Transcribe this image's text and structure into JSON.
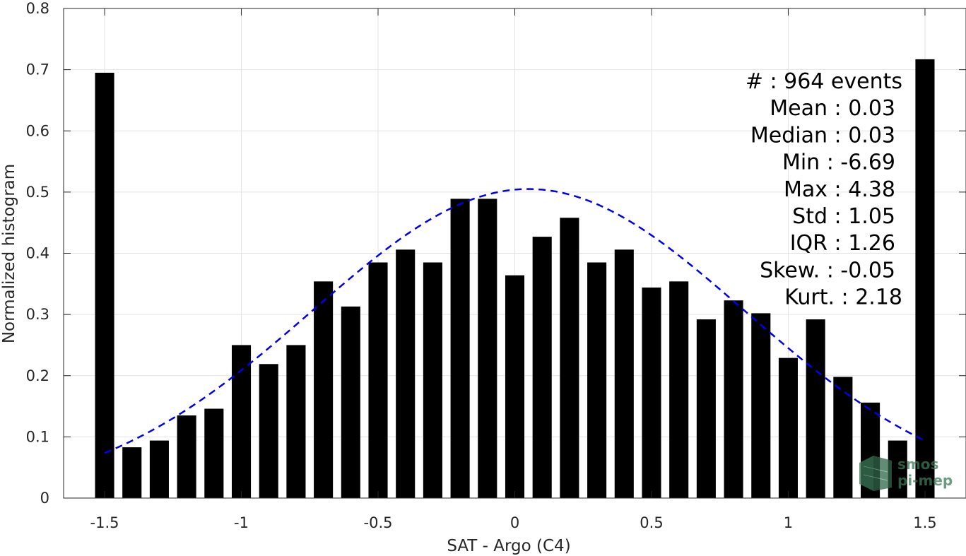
{
  "chart_data": {
    "type": "bar",
    "xlabel": "SAT - Argo (C4)",
    "ylabel": "Normalized histogram",
    "xlim": [
      -1.65,
      1.65
    ],
    "ylim": [
      0,
      0.8
    ],
    "xticks": [
      -1.5,
      -1,
      -0.5,
      0,
      0.5,
      1,
      1.5
    ],
    "xtick_labels": [
      "-1.5",
      "-1",
      "-0.5",
      "0",
      "0.5",
      "1",
      "1.5"
    ],
    "yticks": [
      0,
      0.1,
      0.2,
      0.3,
      0.4,
      0.5,
      0.6,
      0.7,
      0.8
    ],
    "ytick_labels": [
      "0",
      "0.1",
      "0.2",
      "0.3",
      "0.4",
      "0.5",
      "0.6",
      "0.7",
      "0.8"
    ],
    "grid": true,
    "bar_width": 0.07,
    "bars": [
      {
        "x": -1.5,
        "y": 0.695
      },
      {
        "x": -1.4,
        "y": 0.083
      },
      {
        "x": -1.3,
        "y": 0.094
      },
      {
        "x": -1.2,
        "y": 0.135
      },
      {
        "x": -1.1,
        "y": 0.146
      },
      {
        "x": -1.0,
        "y": 0.25
      },
      {
        "x": -0.9,
        "y": 0.219
      },
      {
        "x": -0.8,
        "y": 0.25
      },
      {
        "x": -0.7,
        "y": 0.354
      },
      {
        "x": -0.6,
        "y": 0.313
      },
      {
        "x": -0.5,
        "y": 0.385
      },
      {
        "x": -0.4,
        "y": 0.406
      },
      {
        "x": -0.3,
        "y": 0.385
      },
      {
        "x": -0.2,
        "y": 0.489
      },
      {
        "x": -0.1,
        "y": 0.489
      },
      {
        "x": 0.0,
        "y": 0.364
      },
      {
        "x": 0.1,
        "y": 0.427
      },
      {
        "x": 0.2,
        "y": 0.458
      },
      {
        "x": 0.3,
        "y": 0.385
      },
      {
        "x": 0.4,
        "y": 0.406
      },
      {
        "x": 0.5,
        "y": 0.344
      },
      {
        "x": 0.6,
        "y": 0.354
      },
      {
        "x": 0.7,
        "y": 0.292
      },
      {
        "x": 0.8,
        "y": 0.323
      },
      {
        "x": 0.9,
        "y": 0.302
      },
      {
        "x": 1.0,
        "y": 0.229
      },
      {
        "x": 1.1,
        "y": 0.292
      },
      {
        "x": 1.2,
        "y": 0.198
      },
      {
        "x": 1.3,
        "y": 0.156
      },
      {
        "x": 1.4,
        "y": 0.094
      },
      {
        "x": 1.5,
        "y": 0.717
      }
    ],
    "fit_curve": {
      "type": "gaussian",
      "style": "dashed",
      "color": "#0000ee",
      "mean": 0.05,
      "std": 0.79,
      "peak": 0.505,
      "x_range": [
        -1.5,
        1.5
      ]
    },
    "bar_color": "#000000"
  },
  "stats": [
    {
      "label": "#  :",
      "value": "964 events"
    },
    {
      "label": "Mean :",
      "value": "0.03"
    },
    {
      "label": "Median :",
      "value": "0.03"
    },
    {
      "label": "Min :",
      "value": "-6.69"
    },
    {
      "label": "Max :",
      "value": "4.38"
    },
    {
      "label": "Std :",
      "value": "1.05"
    },
    {
      "label": "IQR :",
      "value": "1.26"
    },
    {
      "label": "Skew. :",
      "value": "-0.05"
    },
    {
      "label": "Kurt. :",
      "value": "2.18"
    }
  ],
  "stats_lines": [
    "#  : 964 events",
    "Mean : 0.03",
    "Median : 0.03",
    "Min : -6.69",
    "Max : 4.38",
    "Std : 1.05",
    "IQR : 1.26",
    "Skew. : -0.05",
    "Kurt. : 2.18"
  ],
  "watermark": {
    "line1": "smos",
    "line2": "pi-mep",
    "color": "#3b7a57"
  }
}
